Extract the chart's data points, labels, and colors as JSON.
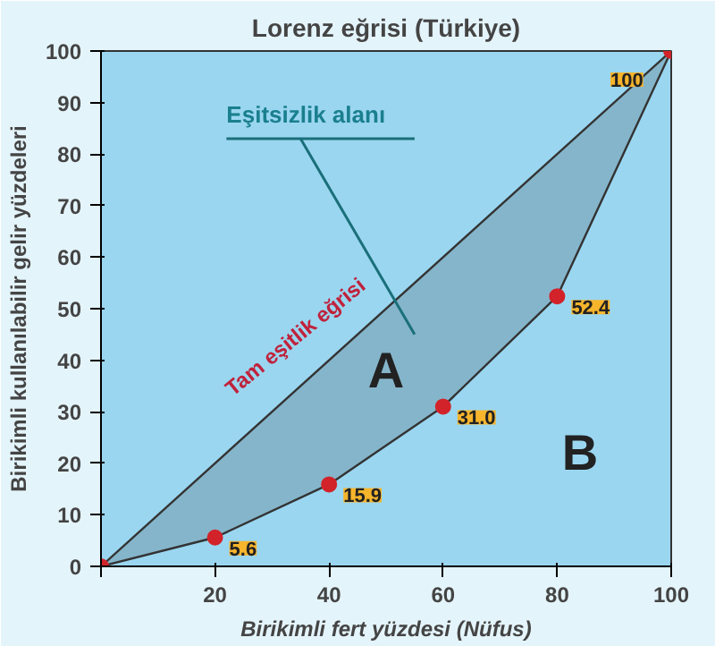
{
  "chart_data": {
    "type": "line",
    "title": "Lorenz eğrisi (Türkiye)",
    "xlabel": "Birikimli fert yüzdesi (Nüfus)",
    "ylabel": "Birikimli kullanılabilir gelir yüzdeleri",
    "x": [
      0,
      20,
      40,
      60,
      80,
      100
    ],
    "series": [
      {
        "name": "Tam eşitlik eğrisi",
        "color": "#333333",
        "x": [
          0,
          100
        ],
        "values": [
          0,
          100
        ]
      },
      {
        "color": "#333333",
        "colors": [
          "#d2232a",
          "#d2232a",
          "#d2232a",
          "#d2232a",
          "#d2232a",
          "#d2232a"
        ],
        "values": [
          0,
          5.6,
          15.9,
          31.0,
          52.4,
          100
        ],
        "lower": [
          0,
          5.6,
          15.9,
          31.0,
          52.4,
          100
        ],
        "upper": [
          0,
          20,
          40,
          60,
          80,
          100
        ],
        "marker": "circle",
        "value_labels": [
          null,
          "5.6",
          "15.9",
          "31.0",
          "52.4",
          "100"
        ]
      }
    ],
    "annotations": [
      "Eşitsizlik alanı",
      "A",
      "B"
    ],
    "xlim": [
      0,
      100
    ],
    "ylim": [
      0,
      100
    ],
    "xticks": [
      {
        "value": 0,
        "label": null
      },
      20,
      40,
      60,
      80,
      100
    ],
    "yticks": [
      0,
      10,
      20,
      30,
      40,
      50,
      60,
      70,
      80,
      90,
      100
    ],
    "grid": false,
    "line_style": "solid"
  }
}
